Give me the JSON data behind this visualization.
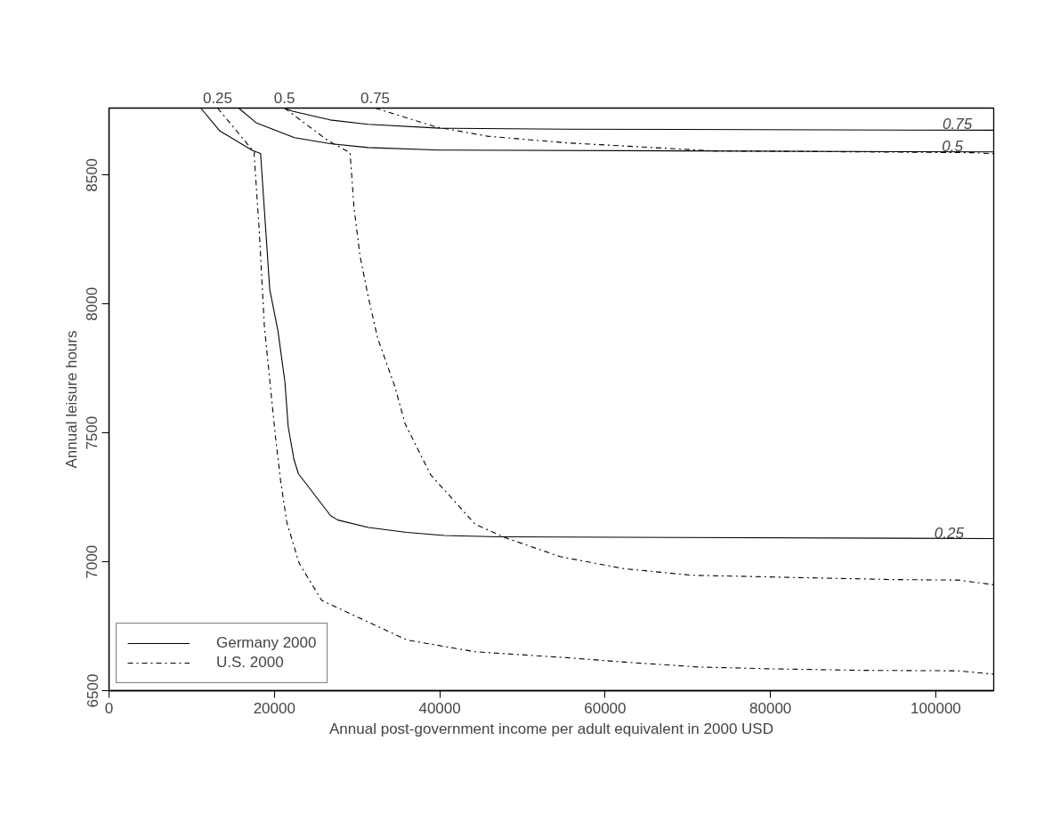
{
  "chart_data": {
    "type": "line",
    "xlabel": "Annual post-government income per adult equivalent in 2000 USD",
    "ylabel": "Annual leisure hours",
    "xlim": [
      0,
      107000
    ],
    "ylim": [
      6500,
      8760
    ],
    "xticks": [
      0,
      20000,
      40000,
      60000,
      80000,
      100000
    ],
    "yticks": [
      6500,
      7000,
      7500,
      8000,
      8500
    ],
    "grid": false,
    "legend": "bottom left",
    "marker": "none",
    "series": [
      {
        "name": "Germany 2000",
        "color": "#000000",
        "line_style": "solid",
        "x": [
          11100,
          13410,
          17360,
          18330,
          19440,
          20420,
          21270,
          21670,
          22360,
          22900,
          26800,
          27670,
          31380,
          36000,
          40540,
          47120,
          107000
        ],
        "values": [
          8760,
          8671,
          8595,
          8584,
          8056,
          7898,
          7699,
          7524,
          7398,
          7342,
          7179,
          7162,
          7133,
          7114,
          7102,
          7097,
          7090
        ]
      },
      {
        "color": "#000000",
        "line_style": "solid",
        "x": [
          15680,
          17840,
          22430,
          26740,
          31320,
          40000,
          107000
        ],
        "values": [
          8760,
          8702,
          8645,
          8622,
          8607,
          8597,
          8590
        ]
      },
      {
        "color": "#000000",
        "line_style": "solid",
        "x": [
          21220,
          22180,
          26740,
          31320,
          40000,
          55390,
          107000
        ],
        "values": [
          8760,
          8748,
          8714,
          8697,
          8682,
          8678,
          8674
        ]
      },
      {
        "name": "U.S. 2000",
        "color": "#000000",
        "line_style": "dashdot",
        "x": [
          13130,
          17610,
          17550,
          18150,
          18790,
          19530,
          20130,
          20770,
          21510,
          23000,
          25730,
          36000,
          44270,
          55400,
          62320,
          71230,
          79900,
          90950,
          102750,
          107000
        ],
        "values": [
          8760,
          8587,
          8580,
          8295,
          7913,
          7676,
          7485,
          7310,
          7152,
          6994,
          6850,
          6697,
          6651,
          6628,
          6611,
          6592,
          6585,
          6579,
          6577,
          6564
        ]
      },
      {
        "color": "#000000",
        "line_style": "dashdot",
        "x": [
          21220,
          26510,
          29150,
          29640,
          30360,
          31320,
          32500,
          34560,
          35800,
          38890,
          44270,
          47970,
          54560,
          62320,
          70440,
          83060,
          94920,
          102750,
          107000
        ],
        "values": [
          8760,
          8633,
          8587,
          8371,
          8186,
          8032,
          7866,
          7681,
          7536,
          7338,
          7146,
          7093,
          7020,
          6973,
          6948,
          6939,
          6931,
          6929,
          6911
        ]
      },
      {
        "color": "#000000",
        "line_style": "dashdot",
        "x": [
          32190,
          39510,
          45770,
          55390,
          73100,
          95700,
          104400,
          107000
        ],
        "values": [
          8760,
          8687,
          8651,
          8625,
          8594,
          8589,
          8587,
          8583
        ]
      }
    ],
    "annotations": [
      {
        "text": "0.25",
        "x": 13130,
        "y": 8760
      },
      {
        "text": "0.5",
        "x": 21220,
        "y": 8760
      },
      {
        "text": "0.75",
        "x": 32190,
        "y": 8760
      },
      {
        "text": "0.75",
        "x": 102600,
        "y": 8674
      },
      {
        "text": "0.5",
        "x": 102000,
        "y": 8590
      },
      {
        "text": "0.25",
        "x": 101600,
        "y": 7090
      }
    ]
  }
}
